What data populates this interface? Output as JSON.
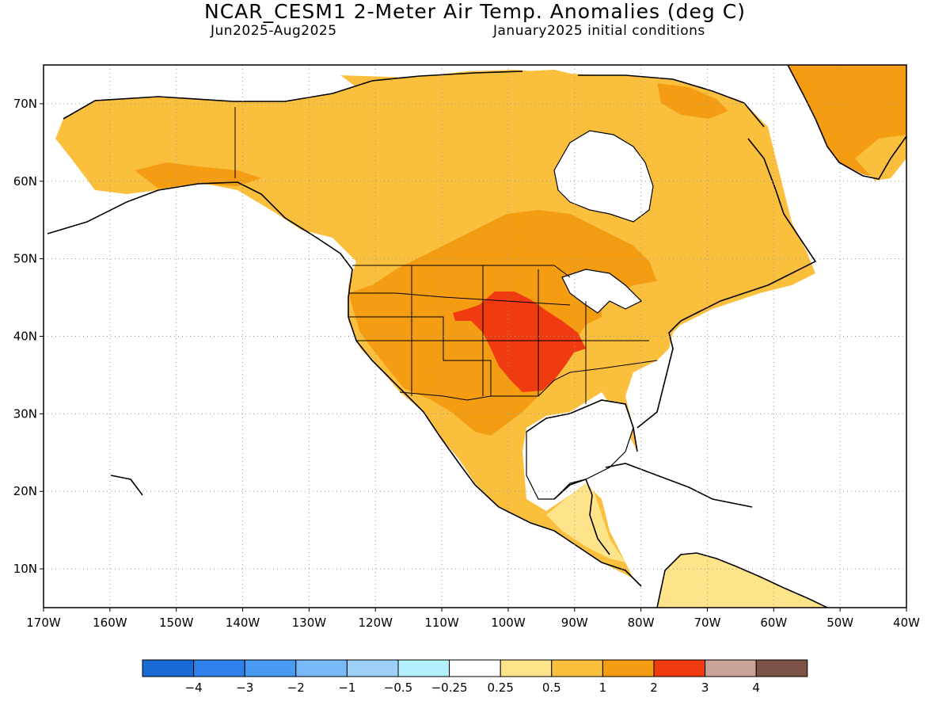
{
  "header": {
    "title": "NCAR_CESM1 2-Meter Air Temp. Anomalies (deg C)",
    "period": "Jun2025-Aug2025",
    "init": "January2025 initial conditions"
  },
  "map": {
    "lon_labels": [
      "170W",
      "160W",
      "150W",
      "140W",
      "130W",
      "120W",
      "110W",
      "100W",
      "90W",
      "80W",
      "70W",
      "60W",
      "50W",
      "40W"
    ],
    "lat_labels": [
      "70N",
      "60N",
      "50N",
      "40N",
      "30N",
      "20N",
      "10N"
    ],
    "grid": true
  },
  "colorbar": {
    "colors": [
      "#1a6ad4",
      "#2f80ea",
      "#4a9af2",
      "#79b9f7",
      "#9dd0f9",
      "#b4f0fb",
      "#ffffff",
      "#fde38a",
      "#fbbf3e",
      "#f59d12",
      "#f03b10",
      "#c9a398",
      "#7e5347"
    ],
    "labels": [
      "−4",
      "−3",
      "−2",
      "−1",
      "−0.5",
      "−0.25",
      "0.25",
      "0.5",
      "1",
      "2",
      "3",
      "4"
    ]
  },
  "legend_values": [
    -4,
    -3,
    -2,
    -1,
    -0.5,
    -0.25,
    0.25,
    0.5,
    1,
    2,
    3,
    4
  ]
}
